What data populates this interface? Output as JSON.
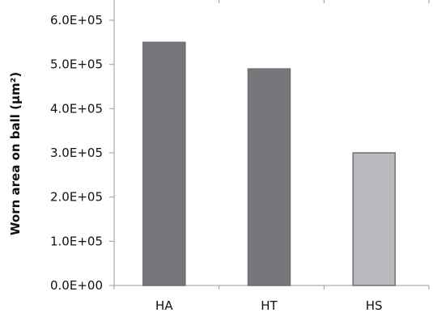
{
  "chart_data": {
    "type": "bar",
    "categories": [
      "HA",
      "HT",
      "HS"
    ],
    "values": [
      550000,
      490000,
      300000
    ],
    "bar_colors": [
      "#76777b",
      "#76777b",
      "#b9babd"
    ],
    "bar_edge_colors": [
      "#6e6f73",
      "#6e6f73",
      "#6e6f73"
    ],
    "title": "",
    "xlabel": "",
    "ylabel": "Worn area on ball (µm²)",
    "ylim": [
      0,
      600000
    ],
    "yticks": [
      0,
      100000,
      200000,
      300000,
      400000,
      500000,
      600000
    ],
    "ytick_labels": [
      "0.0E+00",
      "1.0E+05",
      "2.0E+05",
      "3.0E+05",
      "4.0E+05",
      "5.0E+05",
      "6.0E+05"
    ],
    "grid": false,
    "legend": "none"
  }
}
